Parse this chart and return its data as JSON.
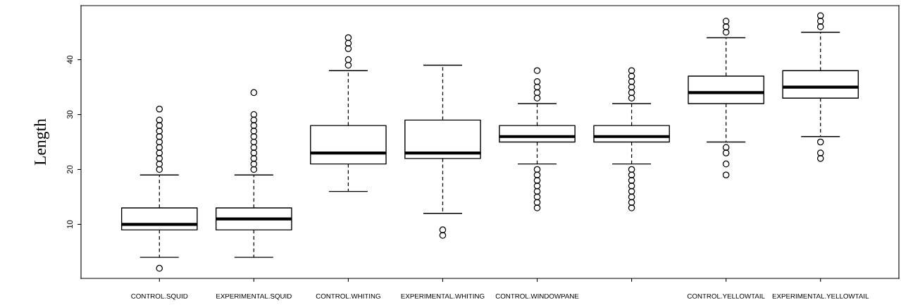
{
  "chart_data": {
    "type": "box",
    "ylabel": "Length",
    "categories": [
      "CONTROL.SQUID",
      "EXPERIMENTAL.SQUID",
      "CONTROL.WHITING",
      "EXPERIMENTAL.WHITING",
      "CONTROL.WINDOWPANE",
      null,
      "CONTROL.YELLOWTAIL",
      "EXPERIMENTAL.YELLOWTAIL"
    ],
    "boxes": [
      {
        "low": 4,
        "q1": 9,
        "median": 10,
        "q3": 13,
        "high": 19,
        "outliers": [
          2,
          20,
          21,
          22,
          23,
          24,
          25,
          26,
          27,
          28,
          29,
          31
        ]
      },
      {
        "low": 4,
        "q1": 9,
        "median": 11,
        "q3": 13,
        "high": 19,
        "outliers": [
          20,
          21,
          22,
          23,
          24,
          25,
          26,
          27,
          28,
          29,
          30,
          34
        ]
      },
      {
        "low": 16,
        "q1": 21,
        "median": 23,
        "q3": 28,
        "high": 38,
        "outliers": [
          39,
          40,
          42,
          43,
          44
        ]
      },
      {
        "low": 12,
        "q1": 22,
        "median": 23,
        "q3": 29,
        "high": 39,
        "outliers": [
          8,
          9
        ]
      },
      {
        "low": 21,
        "q1": 25,
        "median": 26,
        "q3": 28,
        "high": 32,
        "outliers": [
          13,
          14,
          15,
          16,
          17,
          18,
          19,
          20,
          33,
          34,
          35,
          36,
          38
        ]
      },
      {
        "low": 21,
        "q1": 25,
        "median": 26,
        "q3": 28,
        "high": 32,
        "outliers": [
          13,
          14,
          15,
          16,
          17,
          18,
          19,
          20,
          33,
          34,
          35,
          36,
          37,
          38
        ]
      },
      {
        "low": 25,
        "q1": 32,
        "median": 34,
        "q3": 37,
        "high": 44,
        "outliers": [
          19,
          21,
          23,
          24,
          45,
          46,
          47
        ]
      },
      {
        "low": 26,
        "q1": 33,
        "median": 35,
        "q3": 38,
        "high": 45,
        "outliers": [
          22,
          23,
          25,
          46,
          47,
          48
        ]
      }
    ],
    "ylim": [
      0.16,
      49.84
    ],
    "yticks": [
      10,
      20,
      30,
      40
    ],
    "grid": false
  }
}
